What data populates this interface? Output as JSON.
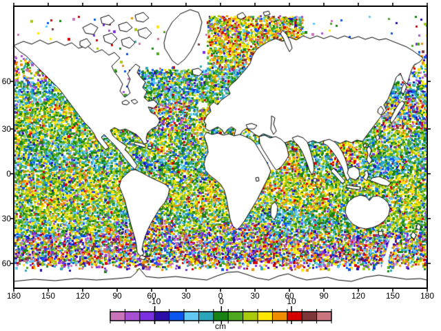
{
  "figure": {
    "background_color": "#ffffff",
    "frame_color": "#000000"
  },
  "axes": {
    "x_tick_labels": [
      "180",
      "150",
      "120",
      "90",
      "60",
      "30",
      "0",
      "30",
      "60",
      "90",
      "120",
      "150",
      "180"
    ],
    "y_tick_labels": [
      "60",
      "30",
      "0",
      "30",
      "60"
    ]
  },
  "colorbar": {
    "unit_label": "cm",
    "tick_labels": [
      "-10",
      "0",
      "10"
    ],
    "colors": [
      "#c973b9",
      "#a64fd2",
      "#7a2fe0",
      "#2b0da8",
      "#0a55f0",
      "#62c8f2",
      "#2aa6b8",
      "#168214",
      "#4ca81e",
      "#a9c90d",
      "#ffe600",
      "#f08c00",
      "#d40000",
      "#7e3638",
      "#c9747f"
    ]
  },
  "map": {
    "land_fill": "#ffffff",
    "coastline_color": "#000000",
    "dot_unit": "cm",
    "no_data_features": [
      "diagonal white gap south of Australia sector",
      "white patch south of Iceland"
    ]
  },
  "chart_data": {
    "type": "scatter",
    "title": "",
    "colorbar_unit": "cm",
    "colorbar_tick_values": [
      -10,
      0,
      10
    ],
    "x_axis_tick_values": [
      180,
      150,
      120,
      90,
      60,
      30,
      0,
      30,
      60,
      90,
      120,
      150,
      180
    ],
    "y_axis_tick_values": [
      60,
      30,
      0,
      30,
      60
    ],
    "description": "Global ocean colored-dot field (sea level anomaly, cm): green/yellow mid-ocean, cyan subpolar bands, warm reds in Norwegian-Barents Sea, mixed high-variance colors in Southern Ocean, Gulf Stream, Kuroshio, Agulhas and Brazil-Malvinas regions"
  }
}
